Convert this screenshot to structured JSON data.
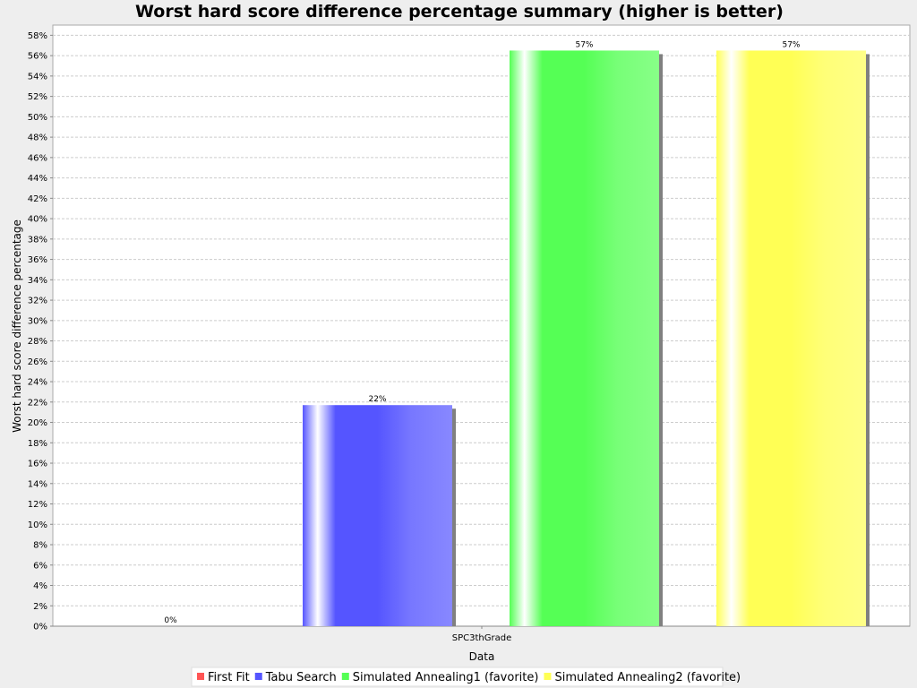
{
  "chart_data": {
    "type": "bar",
    "title": "Worst hard score difference percentage summary (higher is better)",
    "xlabel": "Data",
    "ylabel": "Worst hard score difference percentage",
    "categories": [
      "SPC3thGrade"
    ],
    "ylim": [
      0,
      59
    ],
    "ytick_step": 2,
    "ytick_suffix": "%",
    "grid": true,
    "legend_position": "bottom",
    "series": [
      {
        "name": "First Fit",
        "values": [
          0
        ],
        "label": "0%",
        "color": "#ff5555"
      },
      {
        "name": "Tabu Search",
        "values": [
          21.7
        ],
        "label": "22%",
        "color": "#5555ff"
      },
      {
        "name": "Simulated Annealing1 (favorite)",
        "values": [
          56.5
        ],
        "label": "57%",
        "color": "#55ff55"
      },
      {
        "name": "Simulated Annealing2 (favorite)",
        "values": [
          56.5
        ],
        "label": "57%",
        "color": "#ffff55"
      }
    ]
  }
}
